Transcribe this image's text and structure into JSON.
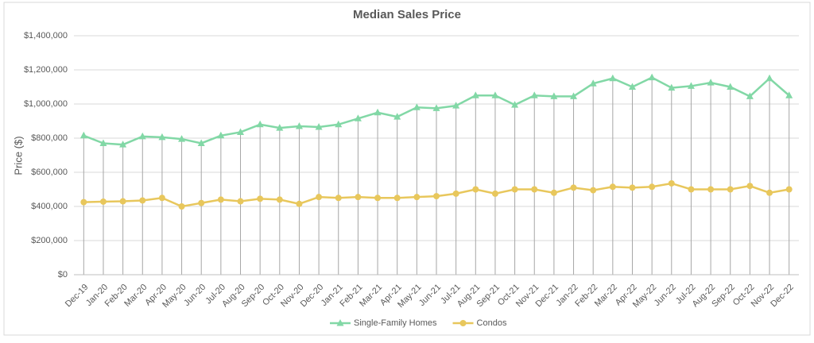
{
  "chart_data": {
    "type": "line",
    "title": "Median Sales Price",
    "y_label": "Price ($)",
    "categories": [
      "Dec-19",
      "Jan-20",
      "Feb-20",
      "Mar-20",
      "Apr-20",
      "May-20",
      "Jun-20",
      "Jul-20",
      "Aug-20",
      "Sep-20",
      "Oct-20",
      "Nov-20",
      "Dec-20",
      "Jan-21",
      "Feb-21",
      "Mar-21",
      "Apr-21",
      "May-21",
      "Jun-21",
      "Jul-21",
      "Aug-21",
      "Sep-21",
      "Oct-21",
      "Nov-21",
      "Dec-21",
      "Jan-22",
      "Feb-22",
      "Mar-22",
      "Apr-22",
      "May-22",
      "Jun-22",
      "Jul-22",
      "Aug-22",
      "Sep-22",
      "Oct-22",
      "Nov-22",
      "Dec-22"
    ],
    "series": [
      {
        "name": "Single-Family Homes",
        "color": "#82d8a6",
        "marker": "triangle",
        "values": [
          815000,
          770000,
          762000,
          810000,
          805000,
          795000,
          770000,
          815000,
          835000,
          880000,
          860000,
          870000,
          865000,
          880000,
          915000,
          950000,
          925000,
          980000,
          975000,
          990000,
          1050000,
          1050000,
          995000,
          1050000,
          1045000,
          1045000,
          1120000,
          1150000,
          1100000,
          1155000,
          1095000,
          1105000,
          1125000,
          1100000,
          1045000,
          1150000,
          1050000
        ]
      },
      {
        "name": "Condos",
        "color": "#e8c75c",
        "marker": "circle",
        "values": [
          425000,
          428000,
          430000,
          435000,
          450000,
          400000,
          420000,
          440000,
          430000,
          445000,
          440000,
          415000,
          455000,
          450000,
          455000,
          450000,
          450000,
          455000,
          460000,
          475000,
          500000,
          475000,
          500000,
          500000,
          480000,
          510000,
          495000,
          515000,
          510000,
          515000,
          535000,
          500000,
          500000,
          500000,
          520000,
          480000,
          500000
        ]
      }
    ],
    "ylim": [
      0,
      1400000
    ],
    "yticks": [
      {
        "value": 0,
        "label": "$0"
      },
      {
        "value": 200000,
        "label": "$200,000"
      },
      {
        "value": 400000,
        "label": "$400,000"
      },
      {
        "value": 600000,
        "label": "$600,000"
      },
      {
        "value": 800000,
        "label": "$800,000"
      },
      {
        "value": 1000000,
        "label": "$1,000,000"
      },
      {
        "value": 1200000,
        "label": "$1,200,000"
      },
      {
        "value": 1400000,
        "label": "$1,400,000"
      }
    ],
    "grid": true,
    "drop_lines": true,
    "legend": "bottom"
  }
}
